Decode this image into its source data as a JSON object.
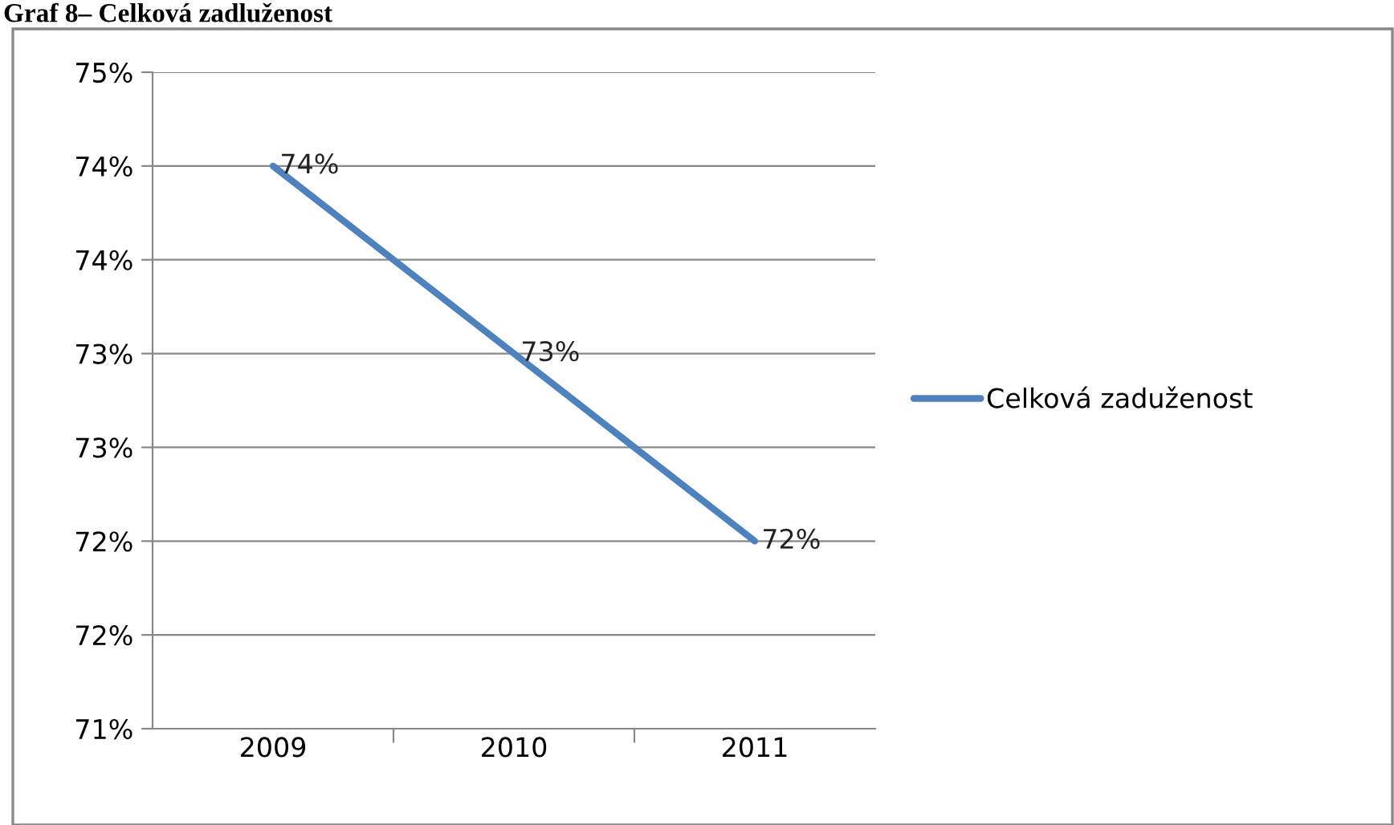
{
  "chart_data": {
    "type": "line",
    "title": "Graf 8– Celková zadluženost",
    "categories": [
      "2009",
      "2010",
      "2011"
    ],
    "series": [
      {
        "name": "Celková zaduženost",
        "color": "#4f81bd",
        "values": [
          74.0,
          73.0,
          72.0
        ],
        "value_labels": [
          "74%",
          "73%",
          "72%"
        ]
      }
    ],
    "ylim": [
      71,
      74.5
    ],
    "yticks": [
      {
        "value": 71,
        "label": "71%"
      },
      {
        "value": 71.5,
        "label": "72%"
      },
      {
        "value": 72,
        "label": "72%"
      },
      {
        "value": 72.5,
        "label": "73%"
      },
      {
        "value": 73,
        "label": "73%"
      },
      {
        "value": 73.5,
        "label": "74%"
      },
      {
        "value": 74,
        "label": "74%"
      },
      {
        "value": 74.5,
        "label": "75%"
      }
    ],
    "grid": "y",
    "legend": "right",
    "marker": "none",
    "line_style": "solid"
  }
}
